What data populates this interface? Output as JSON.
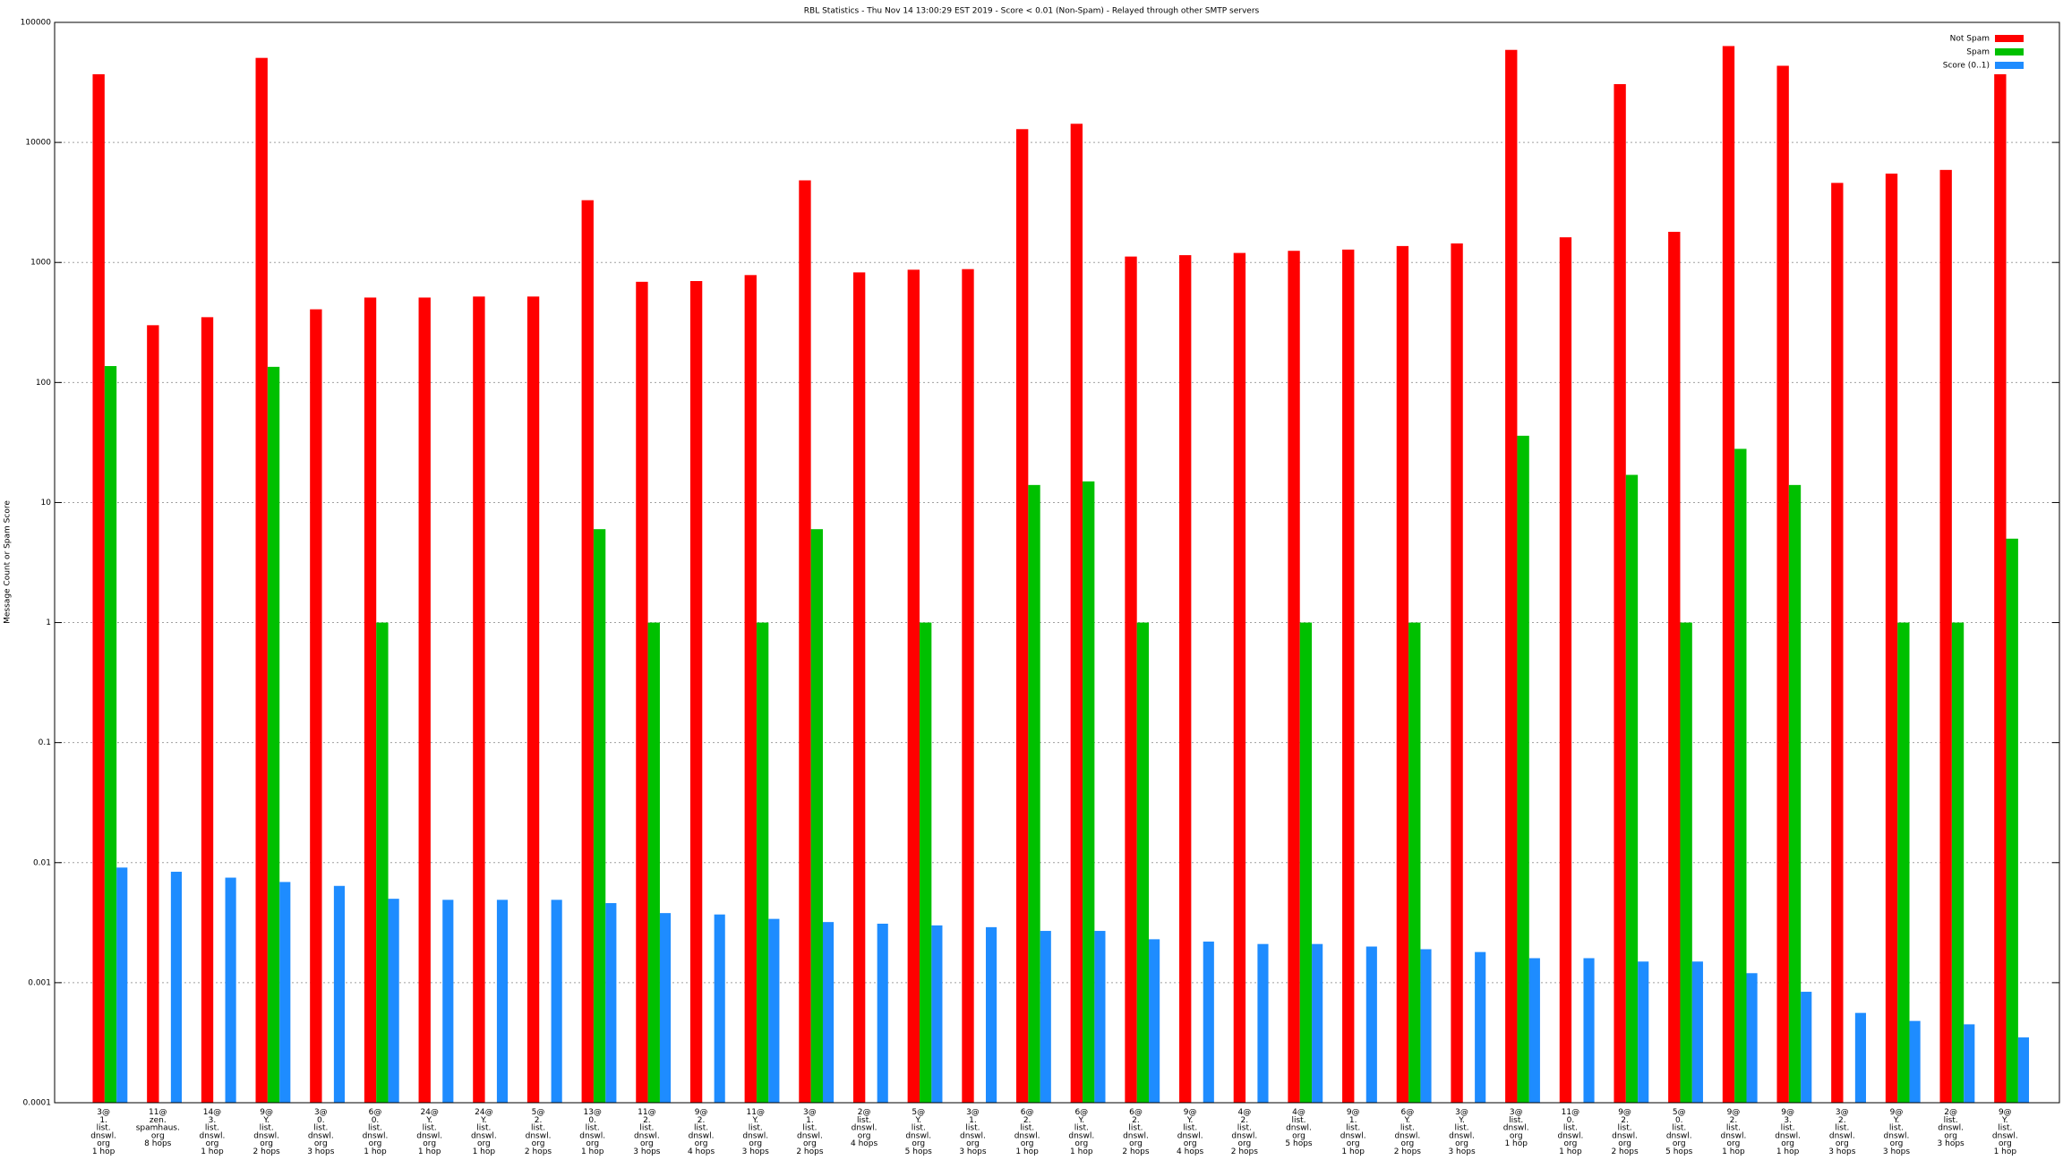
{
  "chart_data": {
    "type": "bar",
    "title": "RBL Statistics - Thu Nov 14 13:00:29 EST 2019 - Score < 0.01 (Non-Spam) - Relayed through other SMTP servers",
    "y_label": "Message Count or Spam Score",
    "log_scale": true,
    "grid": true,
    "legend_position": "top-right",
    "ylim": [
      0.0001,
      100000
    ],
    "yticks": [
      0.0001,
      0.001,
      0.01,
      0.1,
      1,
      10,
      100,
      1000,
      10000,
      100000
    ],
    "categories": [
      [
        "3@",
        "1.",
        "list.",
        "dnswl.",
        "org",
        "1 hop"
      ],
      [
        "11@",
        "zen.",
        "spamhaus.",
        "org",
        "8 hops"
      ],
      [
        "14@",
        "3.",
        "list.",
        "dnswl.",
        "org",
        "1 hop"
      ],
      [
        "9@",
        "Y.",
        "list.",
        "dnswl.",
        "org",
        "2 hops"
      ],
      [
        "3@",
        "0.",
        "list.",
        "dnswl.",
        "org",
        "3 hops"
      ],
      [
        "6@",
        "0.",
        "list.",
        "dnswl.",
        "org",
        "1 hop"
      ],
      [
        "24@",
        "Y.",
        "list.",
        "dnswl.",
        "org",
        "1 hop"
      ],
      [
        "24@",
        "Y.",
        "list.",
        "dnswl.",
        "org",
        "1 hop"
      ],
      [
        "5@",
        "2.",
        "list.",
        "dnswl.",
        "org",
        "2 hops"
      ],
      [
        "13@",
        "0.",
        "list.",
        "dnswl.",
        "org",
        "1 hop"
      ],
      [
        "11@",
        "2.",
        "list.",
        "dnswl.",
        "org",
        "3 hops"
      ],
      [
        "9@",
        "2.",
        "list.",
        "dnswl.",
        "org",
        "4 hops"
      ],
      [
        "11@",
        "Y.",
        "list.",
        "dnswl.",
        "org",
        "3 hops"
      ],
      [
        "3@",
        "1.",
        "list.",
        "dnswl.",
        "org",
        "2 hops"
      ],
      [
        "2@",
        "list.",
        "dnswl.",
        "org",
        "4 hops"
      ],
      [
        "5@",
        "Y.",
        "list.",
        "dnswl.",
        "org",
        "5 hops"
      ],
      [
        "3@",
        "1.",
        "list.",
        "dnswl.",
        "org",
        "3 hops"
      ],
      [
        "6@",
        "2.",
        "list.",
        "dnswl.",
        "org",
        "1 hop"
      ],
      [
        "6@",
        "Y.",
        "list.",
        "dnswl.",
        "org",
        "1 hop"
      ],
      [
        "6@",
        "2.",
        "list.",
        "dnswl.",
        "org",
        "2 hops"
      ],
      [
        "9@",
        "Y.",
        "list.",
        "dnswl.",
        "org",
        "4 hops"
      ],
      [
        "4@",
        "2.",
        "list.",
        "dnswl.",
        "org",
        "2 hops"
      ],
      [
        "4@",
        "list.",
        "dnswl.",
        "org",
        "5 hops"
      ],
      [
        "9@",
        "1.",
        "list.",
        "dnswl.",
        "org",
        "1 hop"
      ],
      [
        "6@",
        "Y.",
        "list.",
        "dnswl.",
        "org",
        "2 hops"
      ],
      [
        "3@",
        "Y.",
        "list.",
        "dnswl.",
        "org",
        "3 hops"
      ],
      [
        "3@",
        "list.",
        "dnswl.",
        "org",
        "1 hop"
      ],
      [
        "11@",
        "0.",
        "list.",
        "dnswl.",
        "org",
        "1 hop"
      ],
      [
        "9@",
        "2.",
        "list.",
        "dnswl.",
        "org",
        "2 hops"
      ],
      [
        "5@",
        "0.",
        "list.",
        "dnswl.",
        "org",
        "5 hops"
      ],
      [
        "9@",
        "2.",
        "list.",
        "dnswl.",
        "org",
        "1 hop"
      ],
      [
        "9@",
        "3.",
        "list.",
        "dnswl.",
        "org",
        "1 hop"
      ],
      [
        "3@",
        "2.",
        "list.",
        "dnswl.",
        "org",
        "3 hops"
      ],
      [
        "9@",
        "Y.",
        "list.",
        "dnswl.",
        "org",
        "3 hops"
      ],
      [
        "2@",
        "list.",
        "dnswl.",
        "org",
        "3 hops"
      ],
      [
        "9@",
        "Y.",
        "list.",
        "dnswl.",
        "org",
        "1 hop"
      ]
    ],
    "series": [
      {
        "name": "Not Spam",
        "color": "#ff0000",
        "values": [
          37000,
          300,
          350,
          50600,
          407,
          510,
          510,
          520,
          520,
          3300,
          690,
          700,
          785,
          4830,
          826,
          870,
          880,
          12900,
          14300,
          1120,
          1150,
          1200,
          1250,
          1280,
          1370,
          1440,
          59000,
          1620,
          30600,
          1800,
          63500,
          43500,
          4600,
          5500,
          5900,
          37000
        ]
      },
      {
        "name": "Spam",
        "color": "#00c000",
        "values": [
          137,
          null,
          null,
          135,
          null,
          1,
          null,
          null,
          null,
          6,
          1,
          null,
          1,
          6,
          null,
          1,
          null,
          14,
          15,
          1,
          null,
          null,
          1,
          null,
          1,
          null,
          36,
          null,
          17,
          1,
          28,
          14,
          null,
          1,
          1,
          5
        ]
      },
      {
        "name": "Score (0..1)",
        "color": "#1e8cff",
        "values": [
          0.0091,
          0.0084,
          0.0075,
          0.0069,
          0.0064,
          0.005,
          0.0049,
          0.0049,
          0.0049,
          0.0046,
          0.0038,
          0.0037,
          0.0034,
          0.0032,
          0.0031,
          0.003,
          0.0029,
          0.0027,
          0.0027,
          0.0023,
          0.0022,
          0.0021,
          0.0021,
          0.002,
          0.0019,
          0.0018,
          0.0016,
          0.0016,
          0.0015,
          0.0015,
          0.0012,
          0.00084,
          0.00056,
          0.00048,
          0.00045,
          0.00035
        ]
      }
    ]
  }
}
